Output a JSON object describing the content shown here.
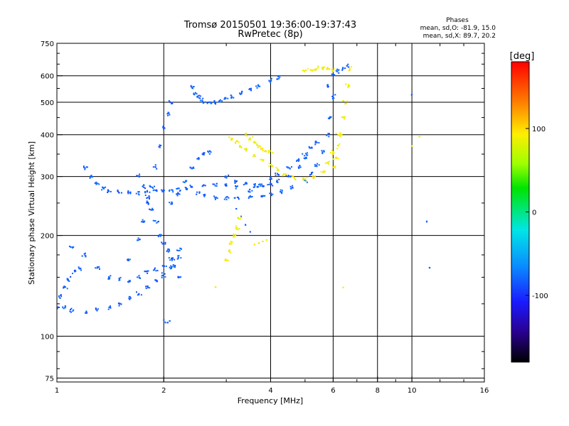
{
  "chart_data": {
    "type": "scatter",
    "title": "Tromsø 20150501 19:36:00-19:37:43",
    "subtitle": "RwPretec (8p)",
    "xlabel": "Frequency [MHz]",
    "ylabel": "Stationary phase Virtual Height [km]",
    "x_scale": "log",
    "y_scale": "log",
    "xlim": [
      1,
      16
    ],
    "ylim": [
      73,
      750
    ],
    "x_ticks": [
      1,
      2,
      4,
      6,
      8,
      10,
      16
    ],
    "x_tick_labels": [
      "1",
      "2",
      "4",
      "6",
      "8",
      "10",
      "16"
    ],
    "x_minor_ticks": [
      3,
      5,
      7,
      9,
      12,
      14
    ],
    "y_ticks": [
      75,
      100,
      200,
      300,
      400,
      500,
      600,
      750
    ],
    "y_tick_labels": [
      "75",
      "100",
      "200",
      "300",
      "400",
      "500",
      "600",
      "750"
    ],
    "y_minor_ticks": [
      80,
      90,
      125,
      150,
      175,
      250,
      350,
      450,
      550,
      650,
      700
    ],
    "grid": true,
    "phase_info": {
      "heading": "Phases",
      "line_o": "mean, sd,O: -81.9, 15.0",
      "line_x": "mean, sd,X: 89.7, 20.2"
    },
    "colorbar": {
      "label": "[deg]",
      "range": [
        -180,
        180
      ],
      "ticks": [
        100,
        0,
        -100
      ],
      "tick_labels": [
        "100",
        "0",
        "-100"
      ]
    },
    "series": [
      {
        "mode": "O",
        "phase_mean": -81.9,
        "phase_sd": 15.0,
        "traces": [
          {
            "f": [
              1.0,
              1.02,
              1.05,
              1.08,
              1.12,
              1.16
            ],
            "h": [
              122,
              131,
              140,
              148,
              156,
              160
            ]
          },
          {
            "f": [
              1.05,
              1.1,
              1.2,
              1.3,
              1.4,
              1.5,
              1.6,
              1.7,
              1.8,
              1.9,
              2.0,
              2.1,
              2.2
            ],
            "h": [
              122,
              119,
              118,
              120,
              122,
              125,
              130,
              134,
              140,
              146,
              152,
              160,
              172
            ]
          },
          {
            "f": [
              1.1,
              1.2,
              1.3,
              1.4,
              1.5,
              1.6,
              1.7,
              1.8,
              1.9,
              2.0,
              2.1,
              2.2
            ],
            "h": [
              185,
              175,
              160,
              150,
              148,
              146,
              150,
              156,
              158,
              162,
              170,
              182
            ]
          },
          {
            "f": [
              1.2,
              1.25,
              1.3,
              1.35,
              1.4,
              1.5,
              1.6,
              1.7,
              1.8,
              1.9,
              2.0,
              2.1,
              2.2,
              2.3,
              2.4,
              2.6,
              2.8,
              3.0
            ],
            "h": [
              320,
              300,
              285,
              277,
              272,
              270,
              268,
              268,
              270,
              272,
              272,
              273,
              275,
              277,
              280,
              282,
              283,
              285
            ]
          },
          {
            "f": [
              1.6,
              1.7,
              1.75,
              1.8,
              1.85,
              1.9,
              1.95,
              2.0,
              2.05,
              2.1
            ],
            "h": [
              170,
              195,
              220,
              250,
              280,
              320,
              370,
              420,
              460,
              500
            ]
          },
          {
            "f": [
              1.7,
              1.75,
              1.8,
              1.85,
              1.9,
              1.95,
              2.0,
              2.05,
              2.1,
              2.15,
              2.2
            ],
            "h": [
              300,
              280,
              260,
              240,
              220,
              200,
              190,
              180,
              170,
              162,
              150
            ]
          },
          {
            "f": [
              2.1,
              2.2,
              2.3,
              2.4,
              2.5,
              2.6,
              2.7
            ],
            "h": [
              250,
              265,
              290,
              320,
              340,
              350,
              355
            ]
          },
          {
            "f": [
              2.0,
              2.02,
              2.05,
              2.08
            ],
            "h": [
              112,
              110,
              110,
              111
            ]
          },
          {
            "f": [
              2.4,
              2.45,
              2.5,
              2.55,
              2.6,
              2.7,
              2.8,
              2.9,
              3.0,
              3.1,
              3.3,
              3.5,
              3.7,
              4.0,
              4.2
            ],
            "h": [
              555,
              530,
              520,
              508,
              500,
              498,
              500,
              505,
              512,
              520,
              530,
              545,
              560,
              578,
              590
            ]
          },
          {
            "f": [
              2.5,
              2.6,
              2.8,
              3.0,
              3.2,
              3.5,
              3.8,
              4.0,
              4.3,
              4.6,
              5.0,
              5.2,
              5.4,
              5.6,
              5.8,
              5.9,
              6.0
            ],
            "h": [
              268,
              263,
              260,
              260,
              260,
              261,
              263,
              265,
              270,
              278,
              290,
              305,
              325,
              355,
              400,
              450,
              520
            ]
          },
          {
            "f": [
              3.0,
              3.2,
              3.4,
              3.6,
              3.8,
              4.0,
              4.2,
              4.5,
              4.8,
              5.0
            ],
            "h": [
              300,
              290,
              285,
              282,
              282,
              285,
              290,
              300,
              320,
              340
            ]
          },
          {
            "f": [
              3.2,
              3.5,
              3.7,
              4.0,
              4.2,
              4.5,
              4.8,
              5.0,
              5.2,
              5.4
            ],
            "h": [
              280,
              272,
              280,
              295,
              305,
              318,
              335,
              350,
              365,
              380
            ]
          },
          {
            "f": [
              5.8,
              6.0,
              6.2,
              6.4,
              6.6
            ],
            "h": [
              560,
              600,
              620,
              630,
              640
            ]
          },
          {
            "f": [
              3.2,
              3.3,
              3.4,
              3.5
            ],
            "h": [
              240,
              228,
              215,
              205
            ]
          },
          {
            "f": [
              10.0,
              11.0,
              11.2
            ],
            "h": [
              525,
              220,
              160
            ]
          }
        ]
      },
      {
        "mode": "X",
        "phase_mean": 89.7,
        "phase_sd": 20.2,
        "traces": [
          {
            "f": [
              3.0,
              3.05,
              3.1,
              3.15,
              3.2,
              3.25
            ],
            "h": [
              170,
              180,
              190,
              200,
              210,
              225
            ]
          },
          {
            "f": [
              3.1,
              3.2,
              3.3,
              3.4,
              3.6,
              3.8,
              4.0,
              4.2,
              4.4,
              4.7,
              5.0,
              5.3,
              5.6,
              5.8,
              6.0,
              6.2
            ],
            "h": [
              390,
              380,
              370,
              360,
              345,
              335,
              325,
              315,
              305,
              298,
              295,
              298,
              310,
              330,
              355,
              400
            ]
          },
          {
            "f": [
              3.4,
              3.5,
              3.6,
              3.7,
              3.8,
              3.9,
              4.0
            ],
            "h": [
              400,
              390,
              380,
              370,
              362,
              358,
              355
            ]
          },
          {
            "f": [
              6.0,
              6.1,
              6.2,
              6.3,
              6.4,
              6.5,
              6.6,
              6.7
            ],
            "h": [
              320,
              340,
              370,
              400,
              450,
              500,
              560,
              630
            ]
          },
          {
            "f": [
              5.0,
              5.2,
              5.4,
              5.6,
              5.8,
              6.0
            ],
            "h": [
              620,
              625,
              630,
              635,
              630,
              625
            ]
          },
          {
            "f": [
              3.6,
              3.7,
              3.8,
              3.9
            ],
            "h": [
              188,
              190,
              192,
              194
            ]
          },
          {
            "f": [
              2.8,
              6.4,
              10.0,
              10.5
            ],
            "h": [
              140,
              140,
              370,
              395
            ]
          }
        ]
      }
    ]
  }
}
